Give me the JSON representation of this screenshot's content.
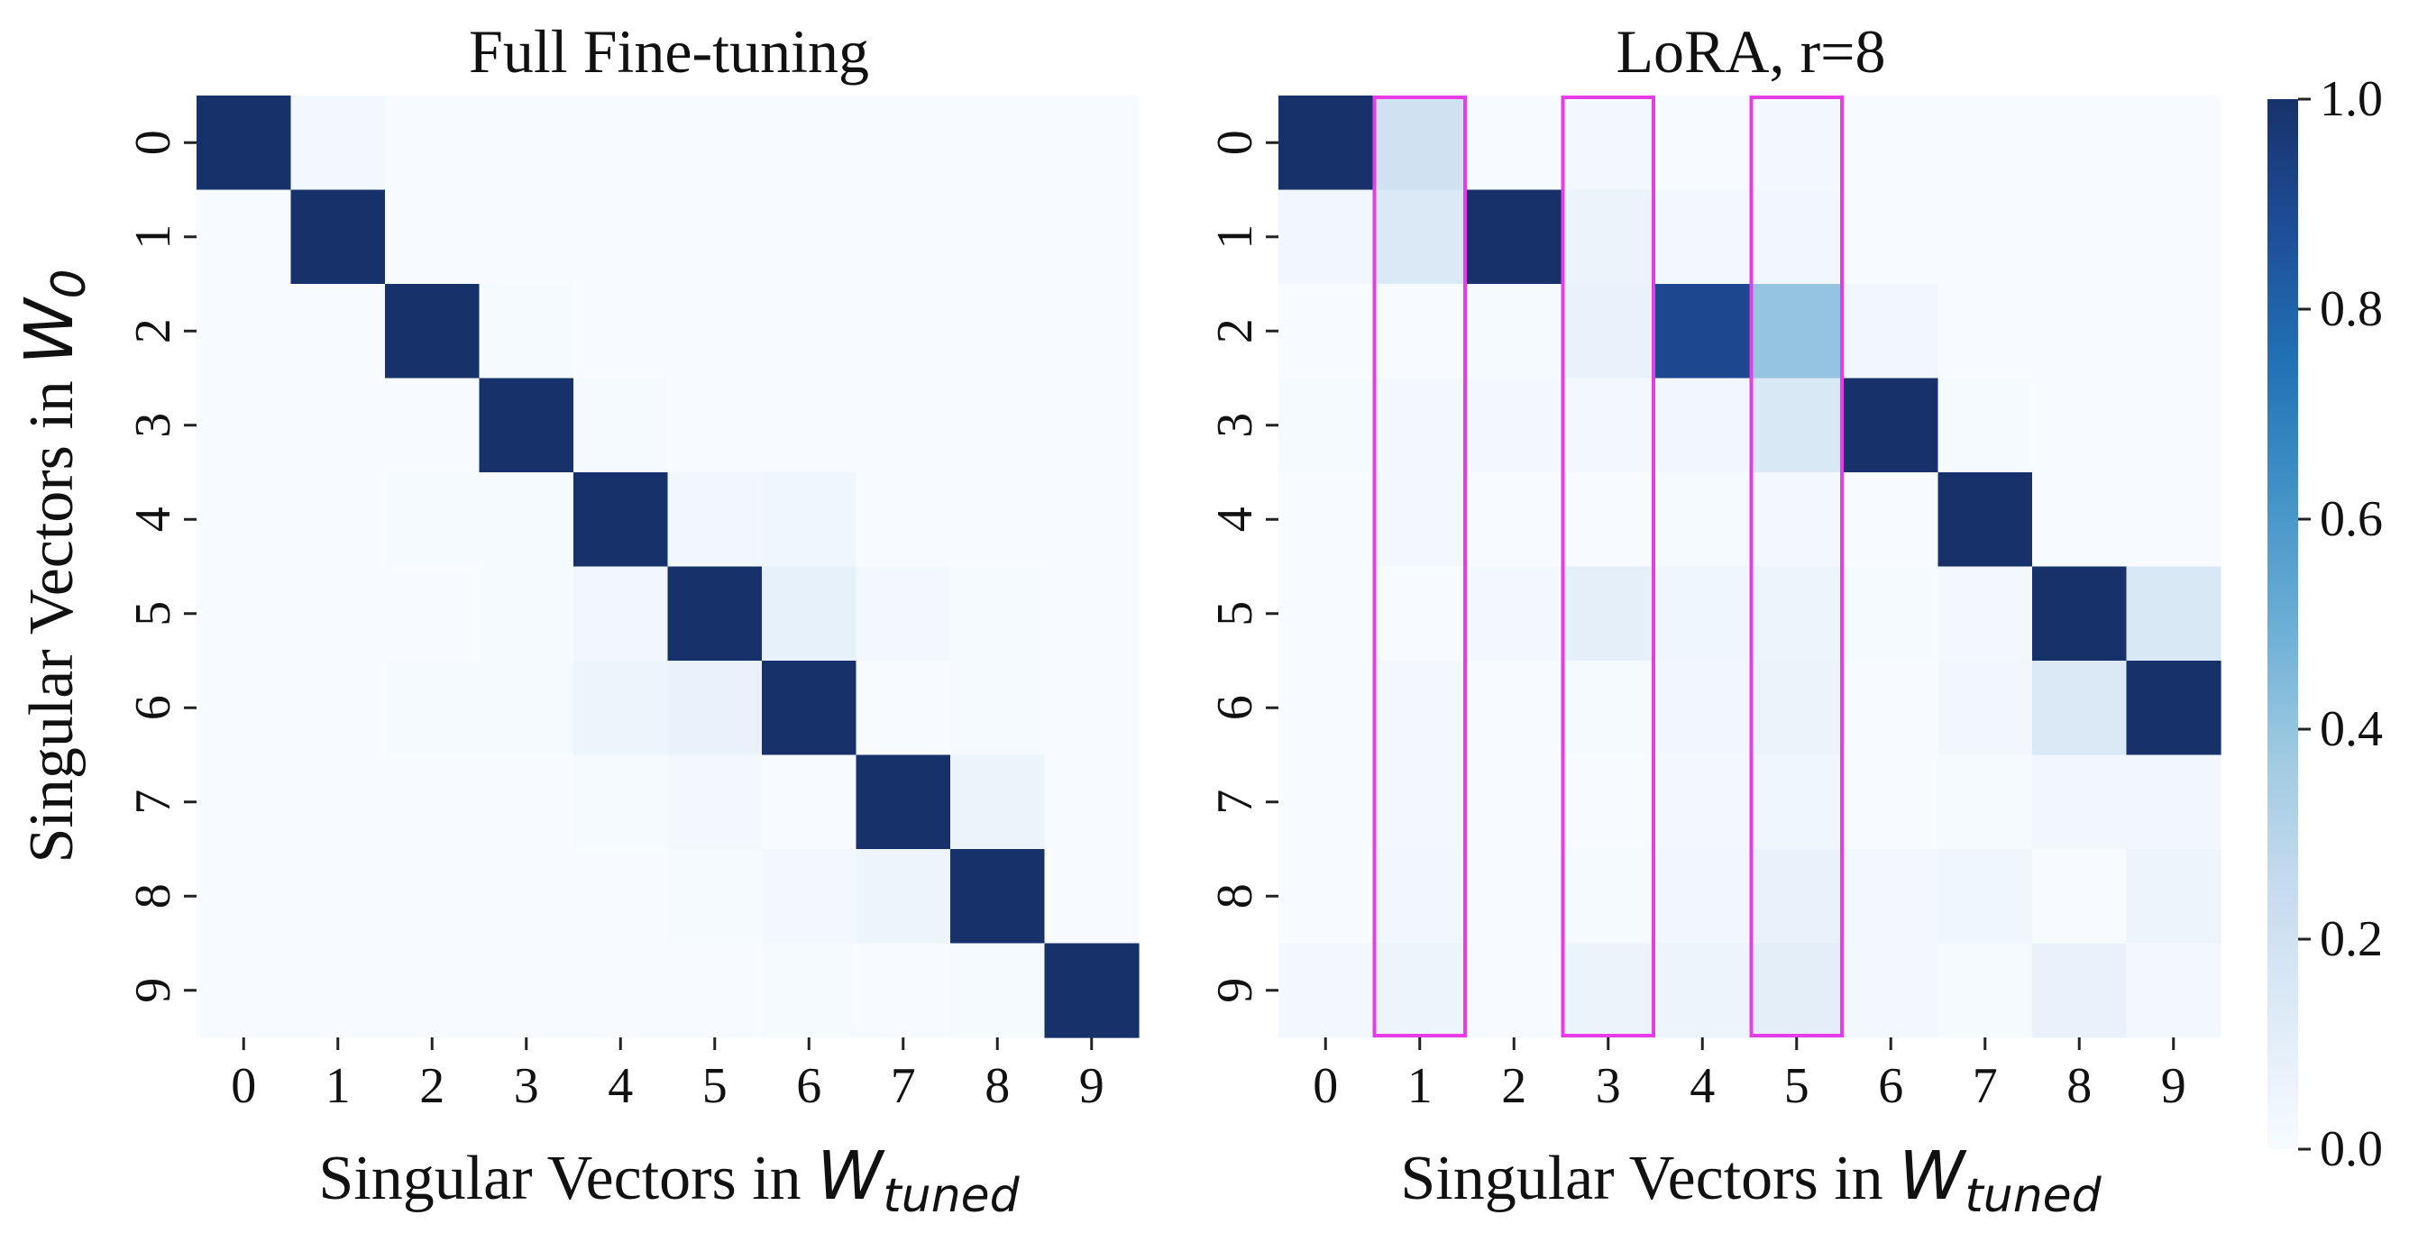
{
  "chart_data": [
    {
      "type": "heatmap",
      "title": "Full Fine-tuning",
      "xlabel": "Singular Vectors in W_tuned",
      "ylabel": "Singular Vectors in W_0",
      "x_ticks": [
        "0",
        "1",
        "2",
        "3",
        "4",
        "5",
        "6",
        "7",
        "8",
        "9"
      ],
      "y_ticks": [
        "0",
        "1",
        "2",
        "3",
        "4",
        "5",
        "6",
        "7",
        "8",
        "9"
      ],
      "values": [
        [
          1.0,
          0.02,
          0.0,
          0.0,
          0.0,
          0.0,
          0.0,
          0.0,
          0.0,
          0.0
        ],
        [
          0.0,
          1.0,
          0.0,
          0.0,
          0.0,
          0.0,
          0.0,
          0.0,
          0.0,
          0.0
        ],
        [
          0.0,
          0.0,
          1.0,
          0.01,
          0.0,
          0.0,
          0.0,
          0.0,
          0.0,
          0.0
        ],
        [
          0.0,
          0.0,
          0.0,
          1.0,
          0.01,
          0.0,
          0.0,
          0.0,
          0.0,
          0.0
        ],
        [
          0.0,
          0.0,
          0.01,
          0.01,
          1.0,
          0.03,
          0.04,
          0.0,
          0.0,
          0.0
        ],
        [
          0.0,
          0.0,
          0.0,
          0.01,
          0.03,
          1.0,
          0.08,
          0.02,
          0.01,
          0.0
        ],
        [
          0.0,
          0.0,
          0.01,
          0.01,
          0.05,
          0.07,
          1.0,
          0.0,
          0.01,
          0.0
        ],
        [
          0.0,
          0.0,
          0.0,
          0.0,
          0.01,
          0.02,
          0.0,
          1.0,
          0.06,
          0.0
        ],
        [
          0.0,
          0.0,
          0.0,
          0.0,
          0.0,
          0.01,
          0.02,
          0.05,
          1.0,
          0.0
        ],
        [
          0.0,
          0.0,
          0.0,
          0.0,
          0.0,
          0.0,
          0.01,
          0.0,
          0.01,
          1.0
        ]
      ]
    },
    {
      "type": "heatmap",
      "title": "LoRA, r=8",
      "xlabel": "Singular Vectors in W_tuned",
      "ylabel": "",
      "x_ticks": [
        "0",
        "1",
        "2",
        "3",
        "4",
        "5",
        "6",
        "7",
        "8",
        "9"
      ],
      "y_ticks": [
        "0",
        "1",
        "2",
        "3",
        "4",
        "5",
        "6",
        "7",
        "8",
        "9"
      ],
      "highlighted_columns": [
        1,
        3,
        5
      ],
      "highlight_color": "#e83ce8",
      "values": [
        [
          1.0,
          0.2,
          0.0,
          0.02,
          0.0,
          0.02,
          0.0,
          0.0,
          0.0,
          0.0
        ],
        [
          0.03,
          0.14,
          1.0,
          0.06,
          0.02,
          0.03,
          0.0,
          0.0,
          0.0,
          0.0
        ],
        [
          0.0,
          0.0,
          0.01,
          0.07,
          0.9,
          0.4,
          0.03,
          0.0,
          0.0,
          0.0
        ],
        [
          0.01,
          0.02,
          0.02,
          0.02,
          0.03,
          0.15,
          1.0,
          0.01,
          0.0,
          0.0
        ],
        [
          0.0,
          0.02,
          0.0,
          0.0,
          0.01,
          0.02,
          0.0,
          1.0,
          0.0,
          0.0
        ],
        [
          0.0,
          0.0,
          0.02,
          0.09,
          0.04,
          0.05,
          0.01,
          0.02,
          1.0,
          0.15
        ],
        [
          0.0,
          0.02,
          0.0,
          0.01,
          0.03,
          0.06,
          0.0,
          0.03,
          0.14,
          1.0
        ],
        [
          0.0,
          0.02,
          0.0,
          0.0,
          0.02,
          0.04,
          0.0,
          0.01,
          0.03,
          0.03
        ],
        [
          0.0,
          0.03,
          0.0,
          0.01,
          0.03,
          0.07,
          0.02,
          0.04,
          0.0,
          0.05
        ],
        [
          0.02,
          0.05,
          0.0,
          0.06,
          0.05,
          0.1,
          0.02,
          0.01,
          0.07,
          0.02
        ]
      ]
    }
  ],
  "colorbar": {
    "min": 0.0,
    "max": 1.0,
    "ticks": [
      "0.0",
      "0.2",
      "0.4",
      "0.6",
      "0.8",
      "1.0"
    ],
    "colors": [
      "#f7fbff",
      "#deebf7",
      "#c6dbef",
      "#9ecae1",
      "#6baed6",
      "#4292c6",
      "#2171b5",
      "#1e4e98",
      "#17326a"
    ]
  },
  "labels": {
    "xlabel_prefix": "Singular Vectors in ",
    "xlabel_math": "W",
    "xlabel_sub": "tuned",
    "ylabel_prefix": "Singular Vectors in ",
    "ylabel_math": "W",
    "ylabel_sub": "0"
  }
}
